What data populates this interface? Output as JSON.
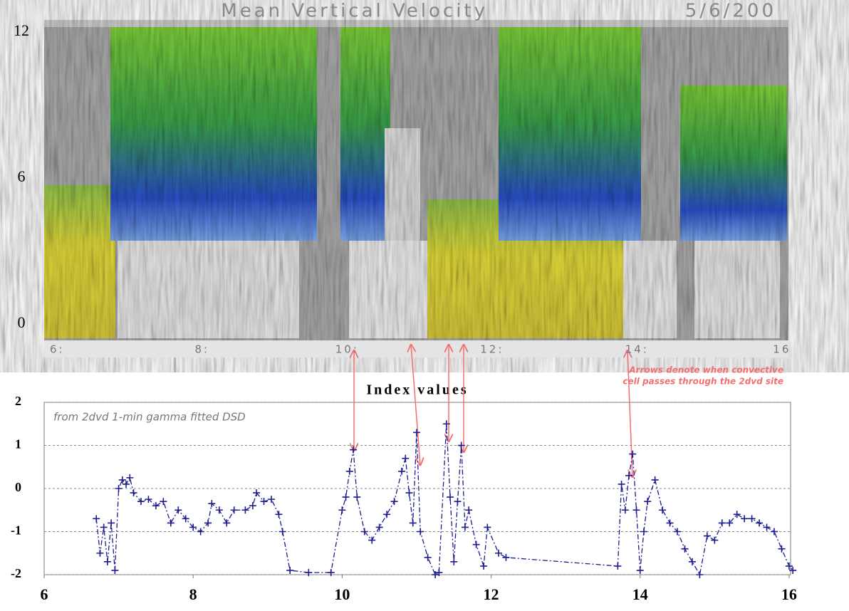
{
  "chart_data": [
    {
      "type": "heatmap",
      "title": "Mean Vertical Velocity",
      "date": "5/6/200",
      "xlim": [
        5.82,
        16.09
      ],
      "xticks": [
        {
          "value": 6,
          "label": "6:"
        },
        {
          "value": 8,
          "label": "8:"
        },
        {
          "value": 10,
          "label": "10:"
        },
        {
          "value": 12,
          "label": "12:"
        },
        {
          "value": 14,
          "label": "14:"
        },
        16
      ],
      "ylim": [
        -0.67,
        12.5
      ],
      "yticks": [
        0,
        6,
        12
      ]
    },
    {
      "type": "line",
      "title": "Index values",
      "annotation": "from 2dvd 1-min gamma fitted DSD",
      "note": [
        "Arrows denote when convective",
        "cell passes through the 2dvd site"
      ],
      "xlim": [
        6,
        16.02
      ],
      "xticks": [
        6,
        8,
        10,
        12,
        14,
        16
      ],
      "ylim": [
        -2,
        2
      ],
      "yticks": [
        -2,
        -1,
        0,
        1,
        2
      ],
      "grid": true,
      "series": [
        {
          "color": "#1c1c8e",
          "x": [
            6.7,
            6.75,
            6.8,
            6.85,
            6.9,
            6.95,
            7.0,
            7.05,
            7.1,
            7.15,
            7.2,
            7.3,
            7.4,
            7.5,
            7.6,
            7.7,
            7.8,
            7.9,
            8.0,
            8.1,
            8.2,
            8.25,
            8.35,
            8.45,
            8.55,
            8.7,
            8.8,
            8.85,
            8.95,
            9.05,
            9.15,
            9.2,
            9.3,
            9.55,
            9.85,
            10.0,
            10.05,
            10.1,
            10.15,
            10.2,
            10.3,
            10.4,
            10.5,
            10.6,
            10.7,
            10.8,
            10.85,
            10.9,
            10.95,
            11.0,
            11.05,
            11.15,
            11.25,
            11.3,
            11.4,
            11.45,
            11.5,
            11.55,
            11.6,
            11.65,
            11.7,
            11.8,
            11.9,
            11.95,
            12.1,
            12.2,
            13.7,
            13.75,
            13.8,
            13.85,
            13.9,
            13.95,
            14.0,
            14.05,
            14.1,
            14.2,
            14.3,
            14.4,
            14.5,
            14.6,
            14.7,
            14.8,
            14.9,
            15.0,
            15.1,
            15.2,
            15.3,
            15.4,
            15.5,
            15.6,
            15.7,
            15.8,
            15.9,
            16.0,
            16.05
          ],
          "values": [
            -0.7,
            -1.5,
            -0.9,
            -1.7,
            -0.8,
            -1.9,
            0.0,
            0.2,
            0.1,
            0.25,
            -0.1,
            -0.3,
            -0.25,
            -0.4,
            -0.3,
            -0.8,
            -0.5,
            -0.7,
            -0.9,
            -1.0,
            -0.8,
            -0.35,
            -0.5,
            -0.8,
            -0.5,
            -0.5,
            -0.4,
            -0.1,
            -0.3,
            -0.25,
            -0.6,
            -1.0,
            -1.9,
            -1.95,
            -1.95,
            -0.5,
            -0.2,
            0.4,
            0.9,
            -0.2,
            -1.0,
            -1.2,
            -0.9,
            -0.6,
            -0.3,
            0.4,
            0.7,
            -0.1,
            -0.8,
            1.3,
            -1.0,
            -1.6,
            -2.0,
            -1.95,
            1.5,
            -0.2,
            -1.7,
            -0.3,
            1.0,
            -0.9,
            -0.5,
            -1.3,
            -1.8,
            -0.9,
            -1.5,
            -1.6,
            -1.8,
            0.1,
            -0.5,
            0.3,
            0.8,
            -0.5,
            -1.9,
            -1.0,
            -0.3,
            0.2,
            -0.5,
            -0.8,
            -1.0,
            -1.4,
            -1.7,
            -2.0,
            -1.1,
            -1.2,
            -0.8,
            -0.8,
            -0.6,
            -0.7,
            -0.7,
            -0.8,
            -0.9,
            -1.0,
            -1.4,
            -1.8,
            -1.9
          ]
        }
      ]
    }
  ]
}
